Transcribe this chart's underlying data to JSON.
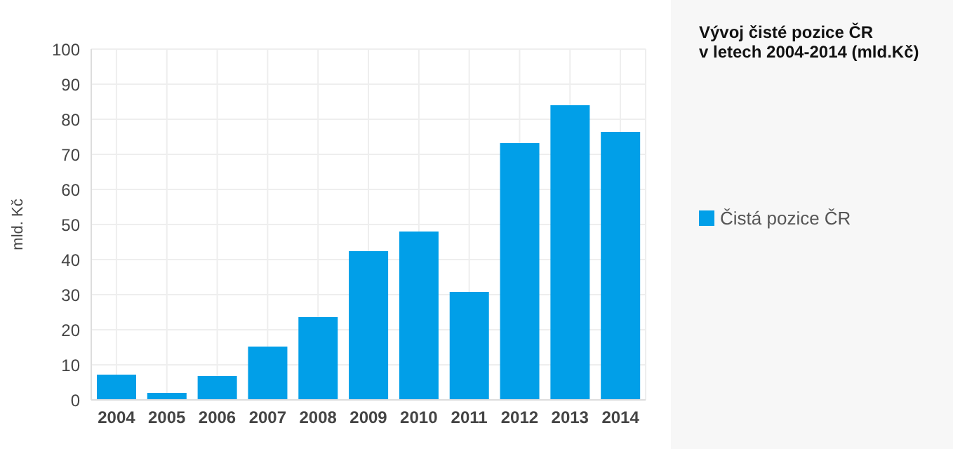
{
  "chart_data": {
    "type": "bar",
    "title": "Vývoj čisté pozice ČR\nv letech 2004-2014 (mld.Kč)",
    "ylabel": "mld. Kč",
    "categories": [
      "2004",
      "2005",
      "2006",
      "2007",
      "2008",
      "2009",
      "2010",
      "2011",
      "2012",
      "2013",
      "2014"
    ],
    "series": [
      {
        "name": "Čistá pozice ČR",
        "color": "#019fe8",
        "values": [
          7.2,
          2.0,
          6.8,
          15.2,
          23.6,
          42.4,
          48.0,
          30.8,
          73.2,
          84.0,
          76.4
        ]
      }
    ],
    "ylim": [
      0,
      100
    ],
    "yticks": [
      0,
      10,
      20,
      30,
      40,
      50,
      60,
      70,
      80,
      90,
      100
    ],
    "grid": true,
    "legend": "right"
  }
}
